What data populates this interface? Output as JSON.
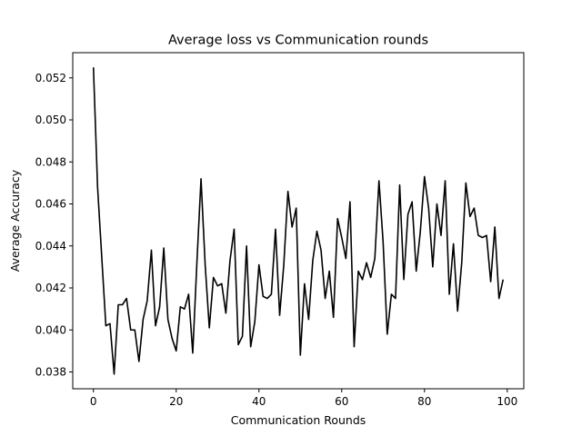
{
  "chart_data": {
    "type": "line",
    "title": "Average loss vs Communication rounds",
    "xlabel": "Communication Rounds",
    "ylabel": "Average Accuracy",
    "xlim": [
      -5,
      104
    ],
    "ylim": [
      0.0372,
      0.0532
    ],
    "xticks": [
      0,
      20,
      40,
      60,
      80,
      100
    ],
    "yticks": [
      0.038,
      0.04,
      0.042,
      0.044,
      0.046,
      0.048,
      0.05,
      0.052
    ],
    "grid": false,
    "legend": "none",
    "line_color": "#000000",
    "series": [
      {
        "x": [
          0,
          1,
          2,
          3,
          4,
          5,
          6,
          7,
          8,
          9,
          10,
          11,
          12,
          13,
          14,
          15,
          16,
          17,
          18,
          19,
          20,
          21,
          22,
          23,
          24,
          25,
          26,
          27,
          28,
          29,
          30,
          31,
          32,
          33,
          34,
          35,
          36,
          37,
          38,
          39,
          40,
          41,
          42,
          43,
          44,
          45,
          46,
          47,
          48,
          49,
          50,
          51,
          52,
          53,
          54,
          55,
          56,
          57,
          58,
          59,
          60,
          61,
          62,
          63,
          64,
          65,
          66,
          67,
          68,
          69,
          70,
          71,
          72,
          73,
          74,
          75,
          76,
          77,
          78,
          79,
          80,
          81,
          82,
          83,
          84,
          85,
          86,
          87,
          88,
          89,
          90,
          91,
          92,
          93,
          94,
          95,
          96,
          97,
          98,
          99
        ],
        "values": [
          0.0525,
          0.0468,
          0.0435,
          0.0402,
          0.0403,
          0.0379,
          0.0412,
          0.0412,
          0.0415,
          0.04,
          0.04,
          0.0385,
          0.0405,
          0.0414,
          0.0438,
          0.0402,
          0.0411,
          0.0439,
          0.0405,
          0.0396,
          0.039,
          0.0411,
          0.041,
          0.0417,
          0.0389,
          0.0432,
          0.0472,
          0.0431,
          0.0401,
          0.0425,
          0.0421,
          0.0422,
          0.0408,
          0.0433,
          0.0448,
          0.0393,
          0.0397,
          0.044,
          0.0392,
          0.0404,
          0.0431,
          0.0416,
          0.0415,
          0.0417,
          0.0448,
          0.0407,
          0.0431,
          0.0466,
          0.0449,
          0.0458,
          0.0388,
          0.0422,
          0.0405,
          0.0433,
          0.0447,
          0.0438,
          0.0415,
          0.0428,
          0.0406,
          0.0453,
          0.0444,
          0.0434,
          0.0461,
          0.0392,
          0.0428,
          0.0424,
          0.0432,
          0.0425,
          0.0434,
          0.0471,
          0.0442,
          0.0398,
          0.0417,
          0.0415,
          0.0469,
          0.0424,
          0.0455,
          0.0461,
          0.0428,
          0.0447,
          0.0473,
          0.0458,
          0.043,
          0.046,
          0.0445,
          0.0471,
          0.0417,
          0.0441,
          0.0409,
          0.0432,
          0.047,
          0.0454,
          0.0458,
          0.0445,
          0.0444,
          0.0445,
          0.0423,
          0.0449,
          0.0415,
          0.0424
        ]
      }
    ]
  }
}
